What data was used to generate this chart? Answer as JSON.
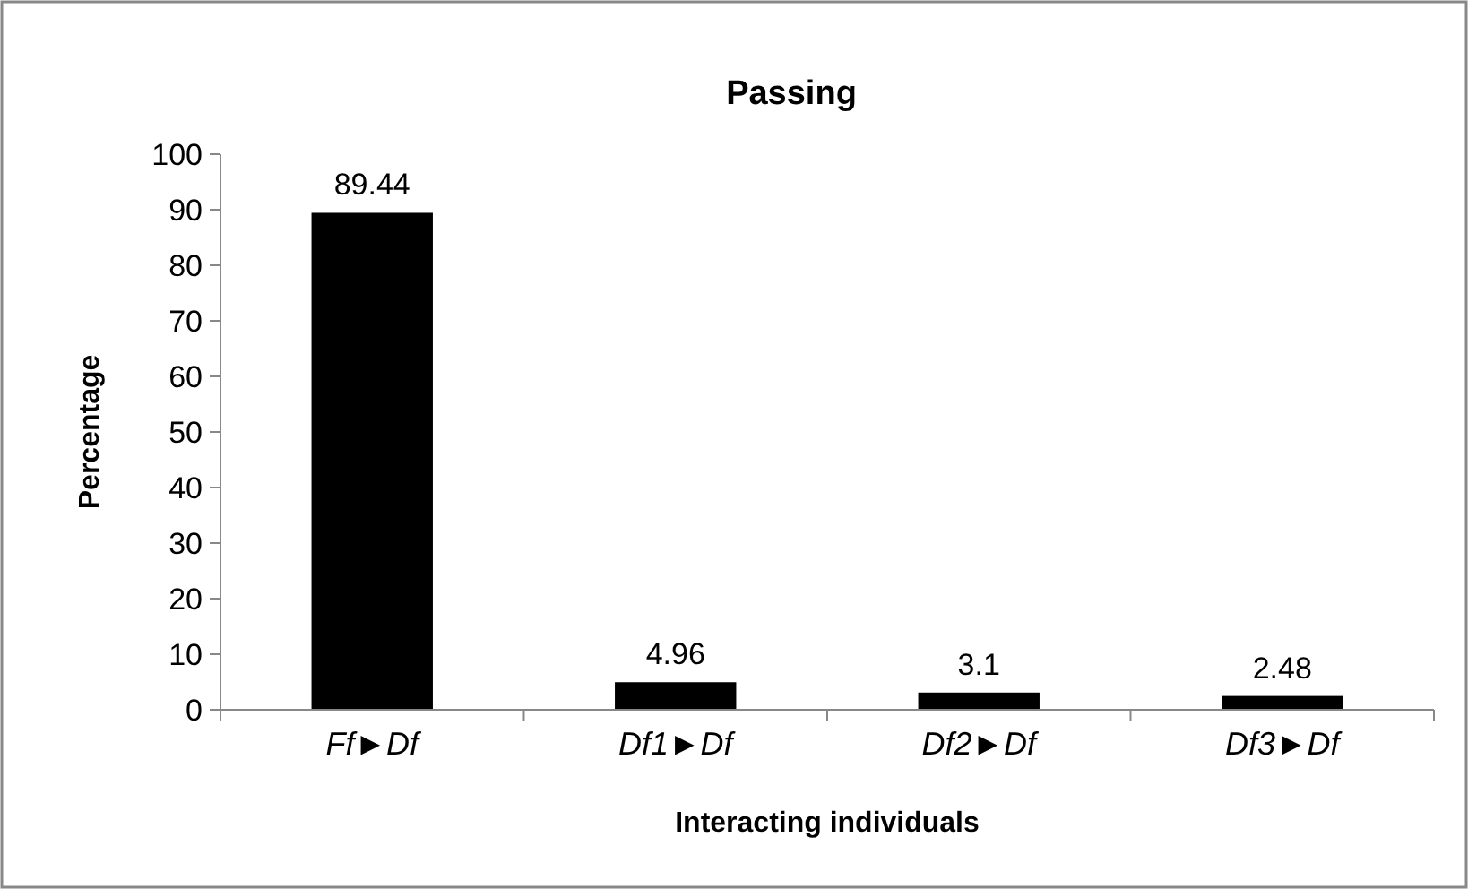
{
  "chart_data": {
    "type": "bar",
    "title": "Passing",
    "xlabel": "Interacting individuals",
    "ylabel": "Percentage",
    "categories": [
      "Ff►Df",
      "Df1►Df",
      "Df2►Df",
      "Df3►Df"
    ],
    "values": [
      89.44,
      4.96,
      3.1,
      2.48
    ],
    "color": "#000000",
    "ylim": [
      0,
      100
    ],
    "yticks": [
      0,
      10,
      20,
      30,
      40,
      50,
      60,
      70,
      80,
      90,
      100
    ],
    "data_labels": true
  }
}
